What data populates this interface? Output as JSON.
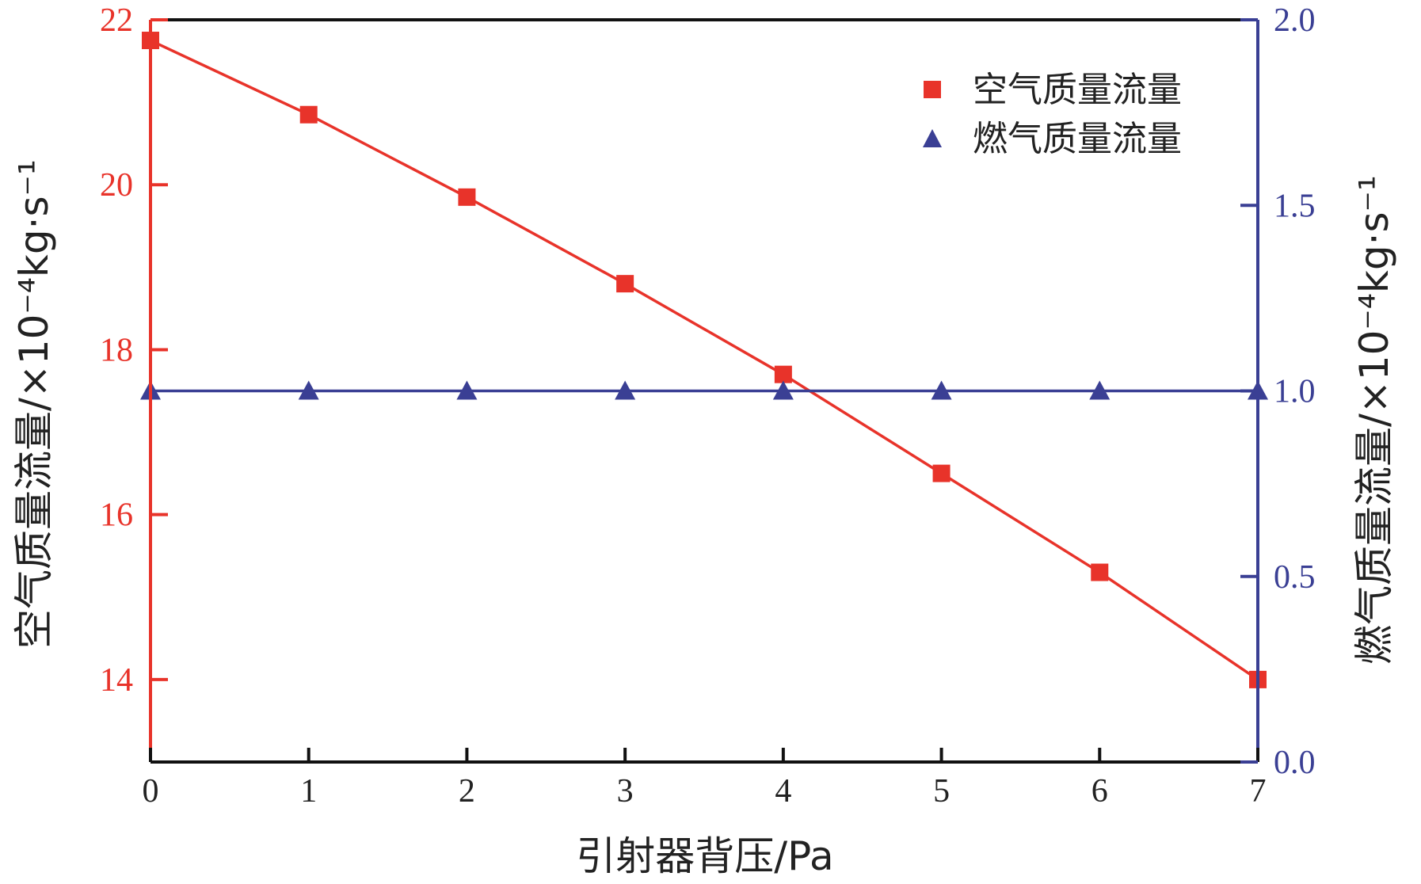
{
  "chart_data": {
    "type": "line",
    "title": "",
    "xlabel": "引射器背压/Pa",
    "ylabel_left": "空气质量流量/×10⁻⁴kg·s⁻¹",
    "ylabel_right": "燃气质量流量/×10⁻⁴kg·s⁻¹",
    "x": [
      0,
      1,
      2,
      3,
      4,
      5,
      6,
      7
    ],
    "xticks": [
      "0",
      "1",
      "2",
      "3",
      "4",
      "5",
      "6",
      "7"
    ],
    "xlim": [
      0,
      7
    ],
    "ylim_left": [
      13,
      22
    ],
    "yticks_left": [
      "14",
      "16",
      "18",
      "20",
      "22"
    ],
    "ylim_right": [
      0.0,
      2.0
    ],
    "yticks_right": [
      "0.0",
      "0.5",
      "1.0",
      "1.5",
      "2.0"
    ],
    "legend_position": "top-right",
    "grid": false,
    "series": [
      {
        "name": "空气质量流量",
        "axis": "left",
        "marker": "square",
        "color": "#e8332a",
        "values": [
          21.75,
          20.85,
          19.85,
          18.8,
          17.7,
          16.5,
          15.3,
          14.0
        ]
      },
      {
        "name": "燃气质量流量",
        "axis": "right",
        "marker": "triangle",
        "color": "#3a3f94",
        "values": [
          1.0,
          1.0,
          1.0,
          1.0,
          1.0,
          1.0,
          1.0,
          1.0
        ]
      }
    ]
  }
}
